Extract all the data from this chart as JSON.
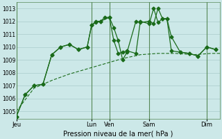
{
  "xlabel": "Pression niveau de la mer( hPa )",
  "background_color": "#cce8e8",
  "plot_bg_color": "#cce8e8",
  "grid_color": "#aacccc",
  "line_color": "#1a6b1a",
  "vline_color": "#558855",
  "ylim": [
    1004.4,
    1013.5
  ],
  "yticks": [
    1005,
    1006,
    1007,
    1008,
    1009,
    1010,
    1011,
    1012,
    1013
  ],
  "x_day_labels": [
    "Jeu",
    "Lun",
    "Ven",
    "Sam",
    "Dim"
  ],
  "x_day_positions": [
    0,
    17,
    21,
    30,
    43
  ],
  "xlim": [
    0,
    46
  ],
  "series1_x": [
    0,
    2,
    4,
    6,
    8,
    10,
    12,
    14,
    16,
    17,
    18,
    19,
    20,
    21,
    22,
    23,
    24,
    25,
    27,
    28,
    30,
    31,
    32,
    33,
    34,
    35,
    37,
    39,
    41,
    43,
    45
  ],
  "series1_y": [
    1004.6,
    1006.3,
    1007.0,
    1007.1,
    1009.4,
    1010.0,
    1010.2,
    1009.8,
    1010.0,
    1011.7,
    1011.9,
    1012.0,
    1012.3,
    1012.3,
    1011.5,
    1010.5,
    1009.0,
    1009.6,
    1012.0,
    1011.9,
    1012.0,
    1011.8,
    1013.0,
    1012.2,
    1012.2,
    1010.8,
    1009.6,
    1009.5,
    1009.3,
    1010.0,
    1009.8
  ],
  "series2_x": [
    0,
    2,
    4,
    6,
    8,
    10,
    12,
    14,
    16,
    17,
    18,
    19,
    21,
    22,
    23,
    24,
    25,
    27,
    28,
    30,
    31,
    32,
    33,
    34,
    35,
    37,
    39,
    41,
    43,
    45
  ],
  "series2_y": [
    1004.6,
    1006.3,
    1007.0,
    1007.1,
    1009.4,
    1010.0,
    1010.2,
    1009.8,
    1010.0,
    1011.7,
    1012.0,
    1012.0,
    1012.3,
    1010.5,
    1009.5,
    1009.6,
    1009.7,
    1009.5,
    1012.0,
    1011.8,
    1013.0,
    1011.9,
    1012.2,
    1012.2,
    1009.7,
    1009.6,
    1009.5,
    1009.3,
    1010.0,
    1009.8
  ],
  "series3_x": [
    0,
    4,
    8,
    12,
    16,
    20,
    24,
    28,
    32,
    36,
    40,
    44,
    46
  ],
  "series3_y": [
    1005.0,
    1006.8,
    1007.4,
    1007.9,
    1008.3,
    1008.7,
    1009.1,
    1009.4,
    1009.5,
    1009.5,
    1009.4,
    1009.5,
    1009.5
  ]
}
